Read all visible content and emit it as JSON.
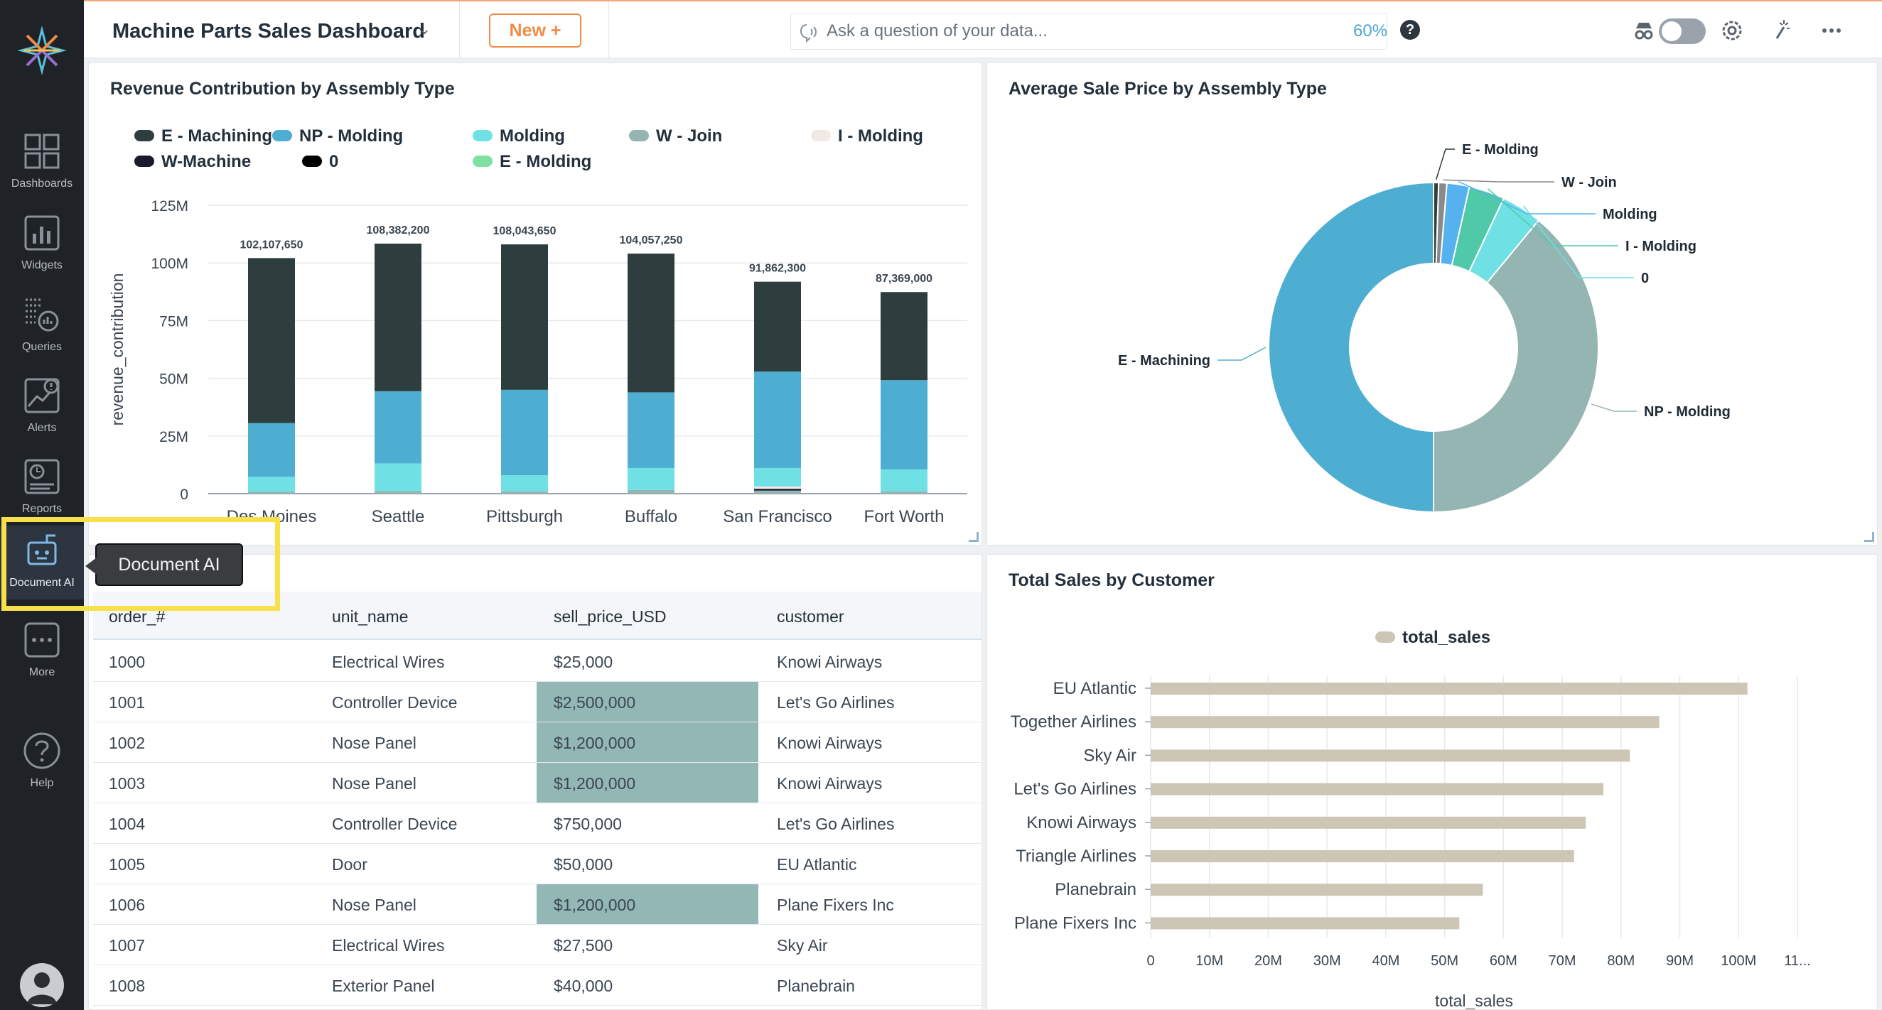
{
  "app": {
    "dashboard_title": "Machine Parts Sales Dashboard",
    "new_button": "New +",
    "ask_placeholder": "Ask a question of your data...",
    "zoom": "60%",
    "help_symbol": "?"
  },
  "sidebar": {
    "items": [
      {
        "label": "Dashboards",
        "icon": "dashboards-icon"
      },
      {
        "label": "Widgets",
        "icon": "widgets-icon"
      },
      {
        "label": "Queries",
        "icon": "queries-icon"
      },
      {
        "label": "Alerts",
        "icon": "alerts-icon"
      },
      {
        "label": "Reports",
        "icon": "reports-icon"
      },
      {
        "label": "Document AI",
        "icon": "document-ai-icon"
      },
      {
        "label": "More",
        "icon": "more-icon"
      },
      {
        "label": "Help",
        "icon": "help-icon"
      }
    ],
    "active_item": "Document AI"
  },
  "tooltip": {
    "text": "Document AI"
  },
  "colors": {
    "e_machining": "#2e3e3e",
    "np_molding": "#4eaed2",
    "molding": "#6fe0e4",
    "w_join": "#94b5b2",
    "i_molding": "#f2e9e4",
    "w_machine": "#1a1a2e",
    "zero": "#000000",
    "e_molding": "#7fe0a4",
    "customer_bar": "#cdc6b4",
    "highlight_cell": "#93b7b4",
    "accent_orange": "#f08b45"
  },
  "panels": {
    "revenue_title": "Revenue Contribution by Assembly Type",
    "avg_price_title": "Average Sale Price by Assembly Type",
    "customer_title": "Total Sales by Customer"
  },
  "table": {
    "columns": [
      "order_#",
      "unit_name",
      "sell_price_USD",
      "customer"
    ],
    "rows": [
      {
        "order": "1000",
        "unit": "Electrical Wires",
        "price": "$25,000",
        "customer": "Knowi Airways",
        "highlight": false
      },
      {
        "order": "1001",
        "unit": "Controller Device",
        "price": "$2,500,000",
        "customer": "Let's Go Airlines",
        "highlight": true
      },
      {
        "order": "1002",
        "unit": "Nose Panel",
        "price": "$1,200,000",
        "customer": "Knowi Airways",
        "highlight": true
      },
      {
        "order": "1003",
        "unit": "Nose Panel",
        "price": "$1,200,000",
        "customer": "Knowi Airways",
        "highlight": true
      },
      {
        "order": "1004",
        "unit": "Controller Device",
        "price": "$750,000",
        "customer": "Let's Go Airlines",
        "highlight": false
      },
      {
        "order": "1005",
        "unit": "Door",
        "price": "$50,000",
        "customer": "EU Atlantic",
        "highlight": false
      },
      {
        "order": "1006",
        "unit": "Nose Panel",
        "price": "$1,200,000",
        "customer": "Plane Fixers Inc",
        "highlight": true
      },
      {
        "order": "1007",
        "unit": "Electrical Wires",
        "price": "$27,500",
        "customer": "Sky Air",
        "highlight": false
      },
      {
        "order": "1008",
        "unit": "Exterior Panel",
        "price": "$40,000",
        "customer": "Planebrain",
        "highlight": false
      }
    ]
  },
  "chart_data": [
    {
      "type": "bar",
      "stacked": true,
      "title": "Revenue Contribution by Assembly Type",
      "ylabel": "revenue_contribution",
      "ylim": [
        0,
        125000000
      ],
      "yticks": [
        "0",
        "25M",
        "50M",
        "75M",
        "100M",
        "125M"
      ],
      "ytick_values": [
        0,
        25000000,
        50000000,
        75000000,
        100000000,
        125000000
      ],
      "categories": [
        "Des Moines",
        "Seattle",
        "Pittsburgh",
        "Buffalo",
        "San Francisco",
        "Fort Worth"
      ],
      "totals": [
        102107650,
        108382200,
        108043650,
        104057250,
        91862300,
        87369000
      ],
      "total_labels": [
        "102,107,650",
        "108,382,200",
        "108,043,650",
        "104,057,250",
        "91,862,300",
        "87,369,000"
      ],
      "legend": [
        "E - Machining",
        "NP - Molding",
        "Molding",
        "W - Join",
        "I - Molding",
        "W-Machine",
        "0",
        "E - Molding"
      ],
      "legend_position": "top",
      "grid": true,
      "series": [
        {
          "name": "W - Join",
          "values": [
            800000,
            1100000,
            1000000,
            1600000,
            1300000,
            1000000
          ]
        },
        {
          "name": "W-Machine",
          "values": [
            0,
            0,
            0,
            0,
            800000,
            0
          ]
        },
        {
          "name": "I - Molding",
          "values": [
            0,
            0,
            0,
            0,
            1000000,
            0
          ]
        },
        {
          "name": "Molding",
          "values": [
            6500000,
            12000000,
            7000000,
            9500000,
            8000000,
            9500000
          ]
        },
        {
          "name": "NP - Molding",
          "values": [
            23300000,
            31300000,
            37000000,
            32800000,
            41800000,
            38700000
          ]
        },
        {
          "name": "E - Machining",
          "values": [
            71507650,
            63982200,
            63043650,
            60157250,
            38962300,
            38169000
          ]
        }
      ]
    },
    {
      "type": "pie",
      "donut": true,
      "title": "Average Sale Price by Assembly Type",
      "labels": [
        "E - Molding",
        "W - Join",
        "Molding",
        "I - Molding",
        "0",
        "NP - Molding",
        "E - Machining"
      ],
      "values": [
        0.5,
        0.8,
        2.2,
        3.5,
        4.0,
        39.0,
        50.0
      ],
      "slice_colors": [
        "#2e3e3e",
        "#8a8a8a",
        "#55b2ef",
        "#4fc9a8",
        "#6fe0e4",
        "#94b5b2",
        "#4eaed2"
      ]
    },
    {
      "type": "bar",
      "orientation": "horizontal",
      "title": "Total Sales by Customer",
      "xlabel": "total_sales",
      "legend": [
        "total_sales"
      ],
      "legend_position": "top",
      "categories": [
        "EU Atlantic",
        "Together Airlines",
        "Sky Air",
        "Let's Go Airlines",
        "Knowi Airways",
        "Triangle Airlines",
        "Planebrain",
        "Plane Fixers Inc"
      ],
      "values": [
        101500000,
        86500000,
        81500000,
        77000000,
        74000000,
        72000000,
        56500000,
        52500000
      ],
      "xticks": [
        "0",
        "10M",
        "20M",
        "30M",
        "40M",
        "50M",
        "60M",
        "70M",
        "80M",
        "90M",
        "100M",
        "11..."
      ],
      "xtick_values": [
        0,
        10000000,
        20000000,
        30000000,
        40000000,
        50000000,
        60000000,
        70000000,
        80000000,
        90000000,
        100000000,
        110000000
      ],
      "xlim": [
        0,
        110000000
      ],
      "grid": true
    }
  ]
}
